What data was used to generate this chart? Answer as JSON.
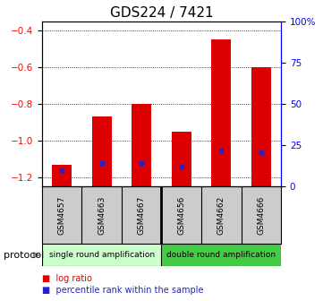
{
  "title": "GDS224 / 7421",
  "samples": [
    "GSM4657",
    "GSM4663",
    "GSM4667",
    "GSM4656",
    "GSM4662",
    "GSM4666"
  ],
  "log_ratios": [
    -1.13,
    -0.87,
    -0.8,
    -0.95,
    -0.45,
    -0.6
  ],
  "percentile_ranks": [
    10,
    14,
    14,
    12,
    22,
    21
  ],
  "ylim_left": [
    -1.25,
    -0.35
  ],
  "ylim_right": [
    0,
    100
  ],
  "yticks_left": [
    -1.2,
    -1.0,
    -0.8,
    -0.6,
    -0.4
  ],
  "yticks_right": [
    0,
    25,
    50,
    75,
    100
  ],
  "bar_color": "#dd0000",
  "percentile_color": "#2222cc",
  "single_label": "single round amplification",
  "double_label": "double round amplification",
  "single_bg": "#ccffcc",
  "double_bg": "#44cc44",
  "sample_box_bg": "#cccccc",
  "protocol_label": "protocol",
  "legend_log": "log ratio",
  "legend_pct": "percentile rank within the sample",
  "title_fontsize": 11,
  "tick_fontsize": 7.5,
  "bar_width": 0.5,
  "n_single": 3,
  "n_double": 3
}
